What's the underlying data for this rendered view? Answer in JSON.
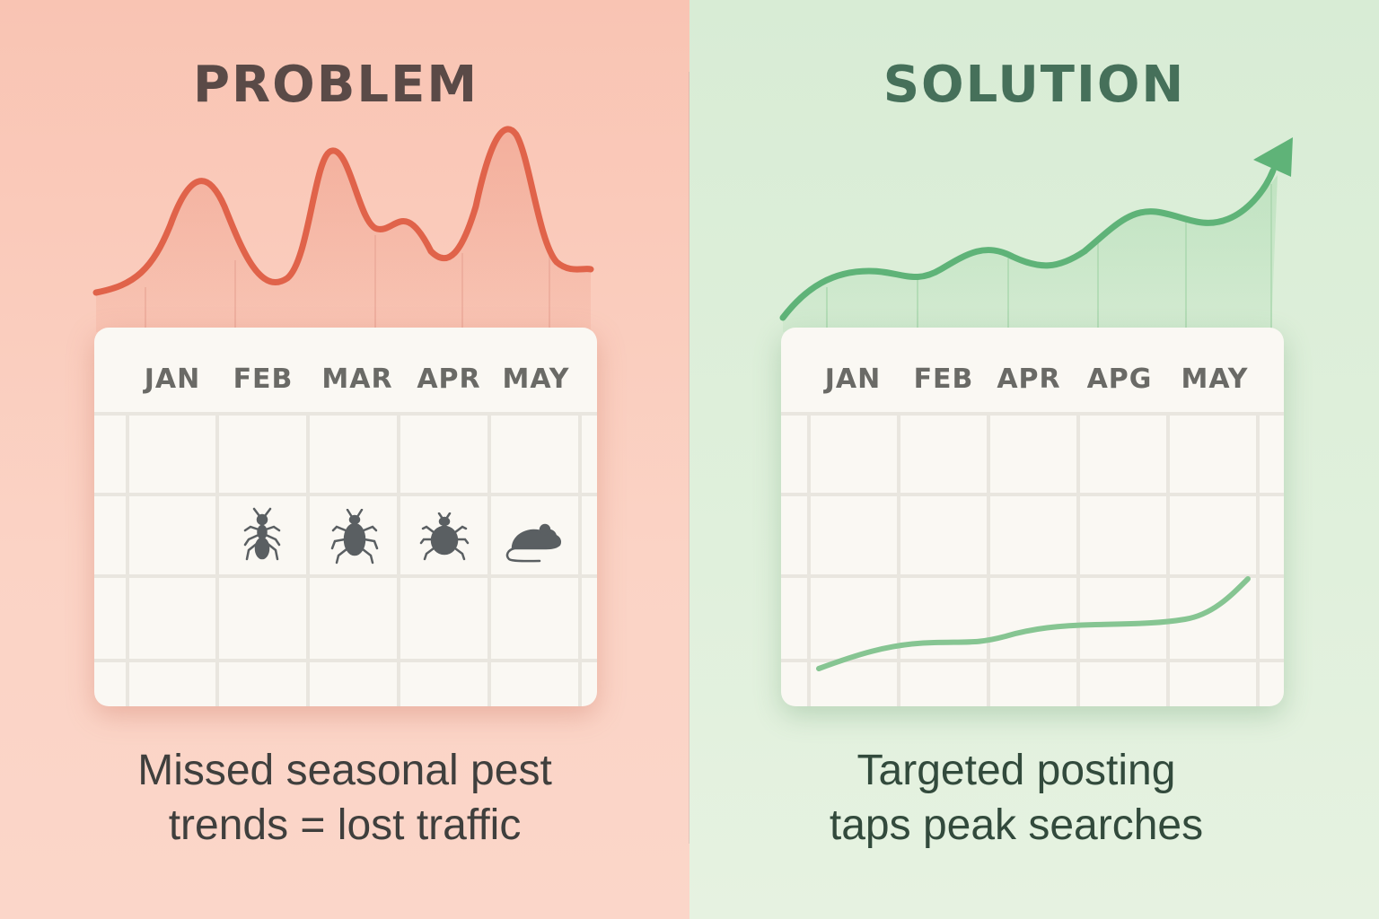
{
  "problem": {
    "heading": "PROBLEM",
    "months": [
      "JAN",
      "FEB",
      "MAR",
      "APR",
      "MAY"
    ],
    "pest_icons": [
      "ant-icon",
      "beetle-icon",
      "tick-icon",
      "mouse-icon"
    ],
    "caption_line1": "Missed seasonal pest",
    "caption_line2": "trends = lost traffic",
    "color_line": "#e0634a"
  },
  "solution": {
    "heading": "SOLUTION",
    "months": [
      "JAN",
      "FEB",
      "APR",
      "APG",
      "MAY"
    ],
    "caption_line1": "Targeted posting",
    "caption_line2": "taps peak searches",
    "color_line": "#5fb378"
  }
}
